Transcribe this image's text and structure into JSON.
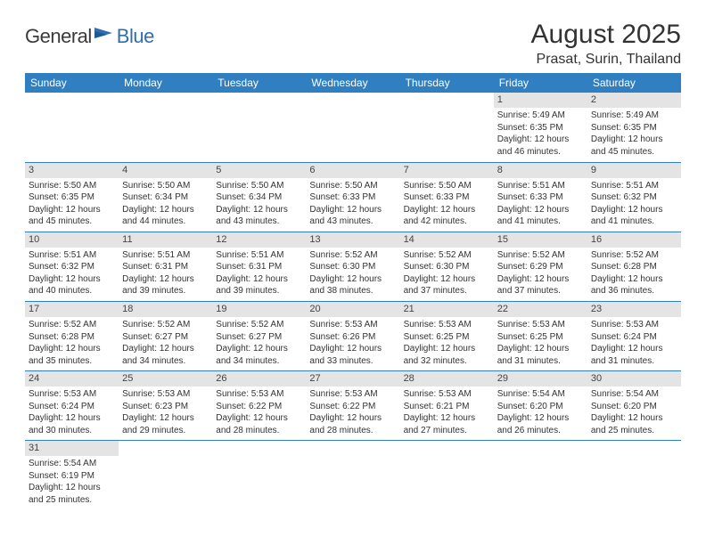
{
  "logo": {
    "text1": "General",
    "text2": "Blue"
  },
  "title": "August 2025",
  "location": "Prasat, Surin, Thailand",
  "colors": {
    "header_bg": "#2f7fc1",
    "header_text": "#ffffff",
    "daynum_bg": "#e4e4e4",
    "daynum_text": "#444444",
    "body_text": "#333333",
    "rule": "#2f7fc1",
    "logo_gray": "#3a3a3a",
    "logo_blue": "#2f6fb0",
    "page_bg": "#ffffff"
  },
  "weekdays": [
    "Sunday",
    "Monday",
    "Tuesday",
    "Wednesday",
    "Thursday",
    "Friday",
    "Saturday"
  ],
  "weeks": [
    [
      null,
      null,
      null,
      null,
      null,
      {
        "n": "1",
        "sunrise": "Sunrise: 5:49 AM",
        "sunset": "Sunset: 6:35 PM",
        "day": "Daylight: 12 hours and 46 minutes."
      },
      {
        "n": "2",
        "sunrise": "Sunrise: 5:49 AM",
        "sunset": "Sunset: 6:35 PM",
        "day": "Daylight: 12 hours and 45 minutes."
      }
    ],
    [
      {
        "n": "3",
        "sunrise": "Sunrise: 5:50 AM",
        "sunset": "Sunset: 6:35 PM",
        "day": "Daylight: 12 hours and 45 minutes."
      },
      {
        "n": "4",
        "sunrise": "Sunrise: 5:50 AM",
        "sunset": "Sunset: 6:34 PM",
        "day": "Daylight: 12 hours and 44 minutes."
      },
      {
        "n": "5",
        "sunrise": "Sunrise: 5:50 AM",
        "sunset": "Sunset: 6:34 PM",
        "day": "Daylight: 12 hours and 43 minutes."
      },
      {
        "n": "6",
        "sunrise": "Sunrise: 5:50 AM",
        "sunset": "Sunset: 6:33 PM",
        "day": "Daylight: 12 hours and 43 minutes."
      },
      {
        "n": "7",
        "sunrise": "Sunrise: 5:50 AM",
        "sunset": "Sunset: 6:33 PM",
        "day": "Daylight: 12 hours and 42 minutes."
      },
      {
        "n": "8",
        "sunrise": "Sunrise: 5:51 AM",
        "sunset": "Sunset: 6:33 PM",
        "day": "Daylight: 12 hours and 41 minutes."
      },
      {
        "n": "9",
        "sunrise": "Sunrise: 5:51 AM",
        "sunset": "Sunset: 6:32 PM",
        "day": "Daylight: 12 hours and 41 minutes."
      }
    ],
    [
      {
        "n": "10",
        "sunrise": "Sunrise: 5:51 AM",
        "sunset": "Sunset: 6:32 PM",
        "day": "Daylight: 12 hours and 40 minutes."
      },
      {
        "n": "11",
        "sunrise": "Sunrise: 5:51 AM",
        "sunset": "Sunset: 6:31 PM",
        "day": "Daylight: 12 hours and 39 minutes."
      },
      {
        "n": "12",
        "sunrise": "Sunrise: 5:51 AM",
        "sunset": "Sunset: 6:31 PM",
        "day": "Daylight: 12 hours and 39 minutes."
      },
      {
        "n": "13",
        "sunrise": "Sunrise: 5:52 AM",
        "sunset": "Sunset: 6:30 PM",
        "day": "Daylight: 12 hours and 38 minutes."
      },
      {
        "n": "14",
        "sunrise": "Sunrise: 5:52 AM",
        "sunset": "Sunset: 6:30 PM",
        "day": "Daylight: 12 hours and 37 minutes."
      },
      {
        "n": "15",
        "sunrise": "Sunrise: 5:52 AM",
        "sunset": "Sunset: 6:29 PM",
        "day": "Daylight: 12 hours and 37 minutes."
      },
      {
        "n": "16",
        "sunrise": "Sunrise: 5:52 AM",
        "sunset": "Sunset: 6:28 PM",
        "day": "Daylight: 12 hours and 36 minutes."
      }
    ],
    [
      {
        "n": "17",
        "sunrise": "Sunrise: 5:52 AM",
        "sunset": "Sunset: 6:28 PM",
        "day": "Daylight: 12 hours and 35 minutes."
      },
      {
        "n": "18",
        "sunrise": "Sunrise: 5:52 AM",
        "sunset": "Sunset: 6:27 PM",
        "day": "Daylight: 12 hours and 34 minutes."
      },
      {
        "n": "19",
        "sunrise": "Sunrise: 5:52 AM",
        "sunset": "Sunset: 6:27 PM",
        "day": "Daylight: 12 hours and 34 minutes."
      },
      {
        "n": "20",
        "sunrise": "Sunrise: 5:53 AM",
        "sunset": "Sunset: 6:26 PM",
        "day": "Daylight: 12 hours and 33 minutes."
      },
      {
        "n": "21",
        "sunrise": "Sunrise: 5:53 AM",
        "sunset": "Sunset: 6:25 PM",
        "day": "Daylight: 12 hours and 32 minutes."
      },
      {
        "n": "22",
        "sunrise": "Sunrise: 5:53 AM",
        "sunset": "Sunset: 6:25 PM",
        "day": "Daylight: 12 hours and 31 minutes."
      },
      {
        "n": "23",
        "sunrise": "Sunrise: 5:53 AM",
        "sunset": "Sunset: 6:24 PM",
        "day": "Daylight: 12 hours and 31 minutes."
      }
    ],
    [
      {
        "n": "24",
        "sunrise": "Sunrise: 5:53 AM",
        "sunset": "Sunset: 6:24 PM",
        "day": "Daylight: 12 hours and 30 minutes."
      },
      {
        "n": "25",
        "sunrise": "Sunrise: 5:53 AM",
        "sunset": "Sunset: 6:23 PM",
        "day": "Daylight: 12 hours and 29 minutes."
      },
      {
        "n": "26",
        "sunrise": "Sunrise: 5:53 AM",
        "sunset": "Sunset: 6:22 PM",
        "day": "Daylight: 12 hours and 28 minutes."
      },
      {
        "n": "27",
        "sunrise": "Sunrise: 5:53 AM",
        "sunset": "Sunset: 6:22 PM",
        "day": "Daylight: 12 hours and 28 minutes."
      },
      {
        "n": "28",
        "sunrise": "Sunrise: 5:53 AM",
        "sunset": "Sunset: 6:21 PM",
        "day": "Daylight: 12 hours and 27 minutes."
      },
      {
        "n": "29",
        "sunrise": "Sunrise: 5:54 AM",
        "sunset": "Sunset: 6:20 PM",
        "day": "Daylight: 12 hours and 26 minutes."
      },
      {
        "n": "30",
        "sunrise": "Sunrise: 5:54 AM",
        "sunset": "Sunset: 6:20 PM",
        "day": "Daylight: 12 hours and 25 minutes."
      }
    ],
    [
      {
        "n": "31",
        "sunrise": "Sunrise: 5:54 AM",
        "sunset": "Sunset: 6:19 PM",
        "day": "Daylight: 12 hours and 25 minutes."
      },
      null,
      null,
      null,
      null,
      null,
      null
    ]
  ]
}
